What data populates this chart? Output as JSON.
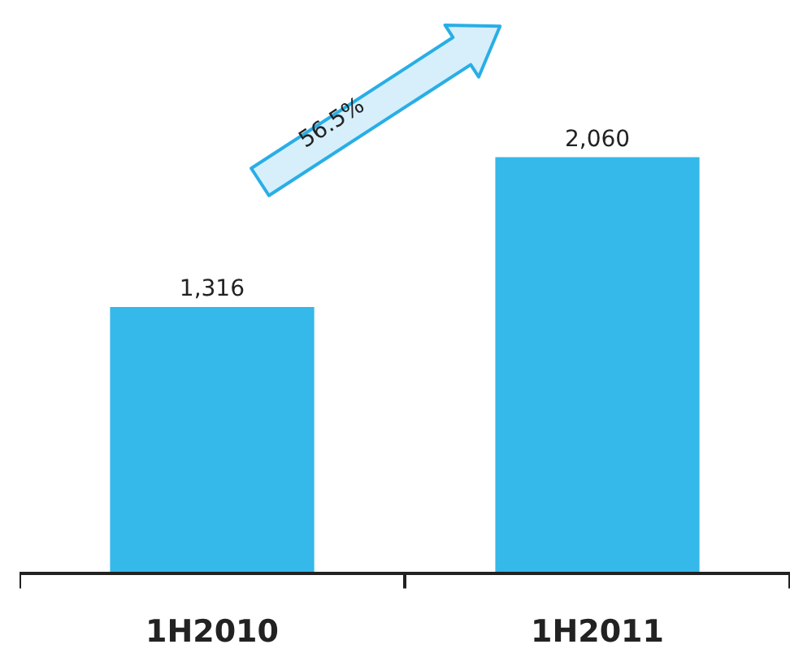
{
  "chart_data": {
    "type": "bar",
    "categories": [
      "1H2010",
      "1H2011"
    ],
    "values": [
      1316,
      2060
    ],
    "color": "#35b8ea",
    "data_labels": true,
    "value_labels": [
      "1,316",
      "2,060"
    ],
    "grid": false,
    "legend": false,
    "annotations": [
      "56.5%"
    ]
  }
}
